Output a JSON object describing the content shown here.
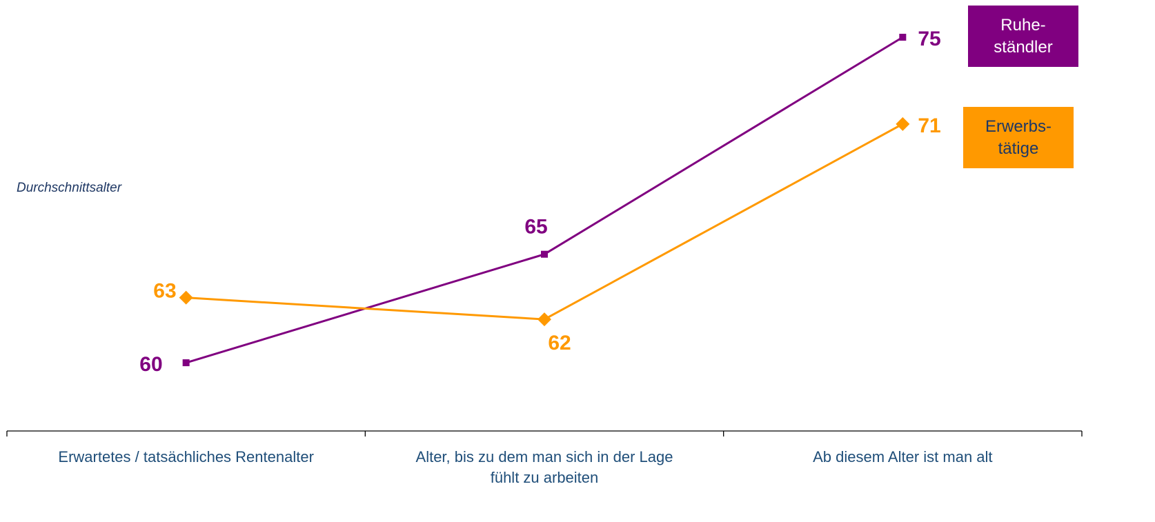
{
  "chart_data": {
    "type": "line",
    "y_label": "Durchschnittsalter",
    "categories": [
      "Erwartetes / tatsächliches Rentenalter",
      "Alter, bis zu dem man sich in der Lage fühlt zu arbeiten",
      "Ab diesem Alter ist man alt"
    ],
    "series": [
      {
        "name": "Ruhe-\nständler",
        "color": "#800080",
        "marker": "square",
        "values": [
          60,
          65,
          75
        ]
      },
      {
        "name": "Erwerbs-\ntätige",
        "color": "#ff9900",
        "marker": "diamond",
        "values": [
          63,
          62,
          71
        ]
      }
    ],
    "ylim": [
      58,
      76
    ],
    "grid": false
  }
}
